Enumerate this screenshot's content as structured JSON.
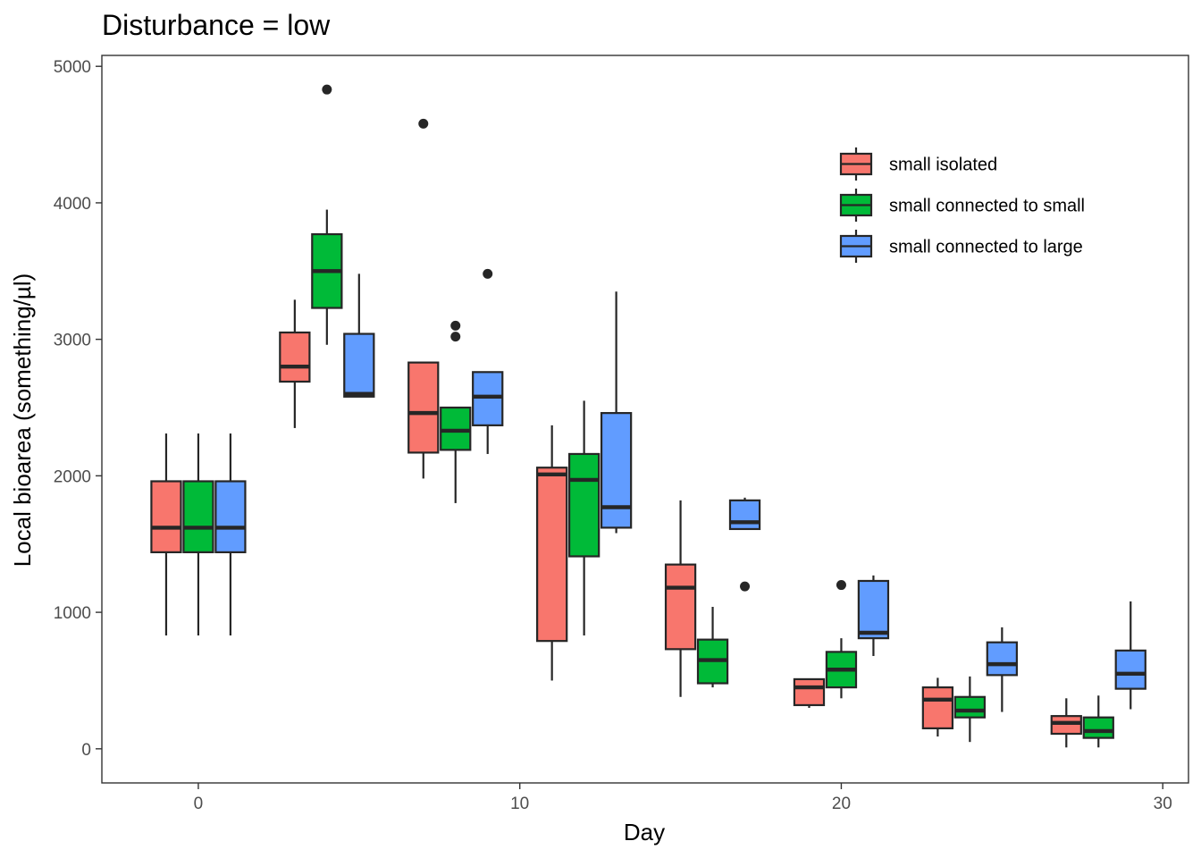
{
  "chart_data": {
    "type": "boxplot",
    "title": "Disturbance = low",
    "xlabel": "Day",
    "ylabel": "Local bioarea (something/µl)",
    "xlim": [
      -3,
      30.8
    ],
    "ylim": [
      -250,
      5080
    ],
    "x_ticks": [
      0,
      10,
      20,
      30
    ],
    "y_ticks": [
      0,
      1000,
      2000,
      3000,
      4000,
      5000
    ],
    "grid": false,
    "legend_position": "top-right",
    "series": [
      {
        "name": "small isolated",
        "color": "#F8766D",
        "boxes": [
          {
            "x": -1,
            "min": 830,
            "q1": 1440,
            "median": 1620,
            "q3": 1960,
            "max": 2310,
            "outliers": []
          },
          {
            "x": 3,
            "min": 2350,
            "q1": 2690,
            "median": 2800,
            "q3": 3050,
            "max": 3290,
            "outliers": []
          },
          {
            "x": 7,
            "min": 1980,
            "q1": 2170,
            "median": 2460,
            "q3": 2830,
            "max": 2830,
            "outliers": [
              4580
            ]
          },
          {
            "x": 11,
            "min": 500,
            "q1": 790,
            "median": 2010,
            "q3": 2060,
            "max": 2370,
            "outliers": []
          },
          {
            "x": 15,
            "min": 380,
            "q1": 730,
            "median": 1180,
            "q3": 1350,
            "max": 1820,
            "outliers": []
          },
          {
            "x": 19,
            "min": 300,
            "q1": 320,
            "median": 450,
            "q3": 510,
            "max": 510,
            "outliers": []
          },
          {
            "x": 23,
            "min": 90,
            "q1": 150,
            "median": 360,
            "q3": 450,
            "max": 520,
            "outliers": []
          },
          {
            "x": 27,
            "min": 10,
            "q1": 110,
            "median": 190,
            "q3": 240,
            "max": 370,
            "outliers": []
          }
        ]
      },
      {
        "name": "small connected to small",
        "color": "#00BA38",
        "boxes": [
          {
            "x": 0,
            "min": 830,
            "q1": 1440,
            "median": 1620,
            "q3": 1960,
            "max": 2310,
            "outliers": []
          },
          {
            "x": 4,
            "min": 2960,
            "q1": 3230,
            "median": 3500,
            "q3": 3770,
            "max": 3950,
            "outliers": [
              4830
            ]
          },
          {
            "x": 8,
            "min": 1800,
            "q1": 2190,
            "median": 2330,
            "q3": 2500,
            "max": 2500,
            "outliers": [
              3100,
              3020
            ]
          },
          {
            "x": 12,
            "min": 830,
            "q1": 1410,
            "median": 1970,
            "q3": 2160,
            "max": 2550,
            "outliers": []
          },
          {
            "x": 16,
            "min": 450,
            "q1": 480,
            "median": 650,
            "q3": 800,
            "max": 1040,
            "outliers": []
          },
          {
            "x": 20,
            "min": 370,
            "q1": 450,
            "median": 580,
            "q3": 710,
            "max": 810,
            "outliers": [
              1200
            ]
          },
          {
            "x": 24,
            "min": 50,
            "q1": 230,
            "median": 280,
            "q3": 380,
            "max": 530,
            "outliers": []
          },
          {
            "x": 28,
            "min": 10,
            "q1": 80,
            "median": 130,
            "q3": 230,
            "max": 390,
            "outliers": []
          }
        ]
      },
      {
        "name": "small connected to large",
        "color": "#619CFF",
        "boxes": [
          {
            "x": 1,
            "min": 830,
            "q1": 1440,
            "median": 1620,
            "q3": 1960,
            "max": 2310,
            "outliers": []
          },
          {
            "x": 5,
            "min": 2580,
            "q1": 2580,
            "median": 2600,
            "q3": 3040,
            "max": 3480,
            "outliers": []
          },
          {
            "x": 9,
            "min": 2160,
            "q1": 2370,
            "median": 2580,
            "q3": 2760,
            "max": 2760,
            "outliers": [
              3480
            ]
          },
          {
            "x": 13,
            "min": 1580,
            "q1": 1620,
            "median": 1770,
            "q3": 2460,
            "max": 3350,
            "outliers": []
          },
          {
            "x": 17,
            "min": 1610,
            "q1": 1610,
            "median": 1660,
            "q3": 1820,
            "max": 1840,
            "outliers": [
              1190
            ]
          },
          {
            "x": 21,
            "min": 680,
            "q1": 810,
            "median": 850,
            "q3": 1230,
            "max": 1270,
            "outliers": []
          },
          {
            "x": 25,
            "min": 270,
            "q1": 540,
            "median": 620,
            "q3": 780,
            "max": 890,
            "outliers": []
          },
          {
            "x": 29,
            "min": 290,
            "q1": 440,
            "median": 550,
            "q3": 720,
            "max": 1080,
            "outliers": []
          }
        ]
      }
    ]
  }
}
